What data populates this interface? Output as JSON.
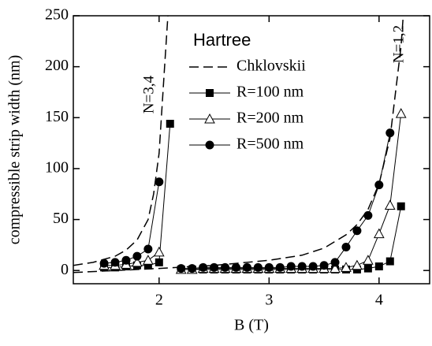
{
  "chart_data": {
    "type": "line",
    "title": "Hartree",
    "xlabel": "B (T)",
    "ylabel": "compressible strip width (nm)",
    "annotations": [
      "N=3,4",
      "N=1,2"
    ],
    "xlim": [
      1.22,
      4.46
    ],
    "ylim": [
      -13,
      250
    ],
    "xticks": [
      2,
      3,
      4
    ],
    "yticks": [
      0,
      50,
      100,
      150,
      200,
      250
    ],
    "legend": "upper center",
    "series": [
      {
        "name": "Chklovskii",
        "color": "#000000",
        "dash": "dashed",
        "marker": "none",
        "x": [
          1.22,
          1.4,
          1.6,
          1.7,
          1.8,
          1.9,
          1.95,
          2.0,
          2.05,
          2.08,
          null,
          1.22,
          1.6,
          2.0,
          2.5,
          3.0,
          3.3,
          3.5,
          3.7,
          3.8,
          3.9,
          4.0,
          4.1,
          4.2,
          4.22
        ],
        "values": [
          5,
          8,
          14,
          20,
          30,
          50,
          75,
          115,
          200,
          250,
          null,
          -2,
          0,
          2,
          5,
          10,
          15,
          22,
          35,
          45,
          60,
          85,
          130,
          220,
          250
        ]
      },
      {
        "name": "R=100 nm",
        "color": "#000000",
        "dash": "solid",
        "marker": "square",
        "x": [
          1.5,
          1.6,
          1.7,
          1.8,
          1.9,
          2.0,
          2.1,
          null,
          2.2,
          2.3,
          2.4,
          2.5,
          2.6,
          2.7,
          2.8,
          2.9,
          3.0,
          3.1,
          3.2,
          3.3,
          3.4,
          3.5,
          3.6,
          3.7,
          3.8,
          3.9,
          4.0,
          4.1,
          4.2
        ],
        "values": [
          3,
          3,
          4,
          5,
          5,
          8,
          144,
          null,
          1,
          1,
          1,
          1,
          1,
          1,
          1,
          1,
          1,
          1,
          1,
          1,
          1,
          1,
          1,
          1,
          1,
          2,
          4,
          9,
          63
        ]
      },
      {
        "name": "R=200 nm",
        "color": "#000000",
        "dash": "solid",
        "marker": "triangle",
        "x": [
          1.5,
          1.6,
          1.7,
          1.8,
          1.9,
          2.0,
          null,
          2.2,
          2.3,
          2.4,
          2.5,
          2.6,
          2.7,
          2.8,
          2.9,
          3.0,
          3.1,
          3.2,
          3.3,
          3.4,
          3.5,
          3.6,
          3.7,
          3.8,
          3.9,
          4.0,
          4.1,
          4.2
        ],
        "values": [
          5,
          5,
          6,
          8,
          10,
          18,
          null,
          1,
          1,
          2,
          2,
          2,
          2,
          2,
          2,
          2,
          2,
          2,
          2,
          2,
          2,
          2,
          3,
          5,
          10,
          36,
          64,
          154
        ]
      },
      {
        "name": "R=500 nm",
        "color": "#000000",
        "dash": "solid",
        "marker": "circle",
        "x": [
          1.5,
          1.6,
          1.7,
          1.8,
          1.9,
          2.0,
          null,
          2.2,
          2.3,
          2.4,
          2.5,
          2.6,
          2.7,
          2.8,
          2.9,
          3.0,
          3.1,
          3.2,
          3.3,
          3.4,
          3.5,
          3.6,
          3.7,
          3.8,
          3.9,
          4.0,
          4.1
        ],
        "values": [
          7,
          8,
          10,
          14,
          21,
          87,
          null,
          2,
          2,
          3,
          3,
          3,
          3,
          3,
          3,
          3,
          3,
          4,
          4,
          4,
          5,
          8,
          23,
          39,
          54,
          84,
          135
        ]
      }
    ]
  }
}
